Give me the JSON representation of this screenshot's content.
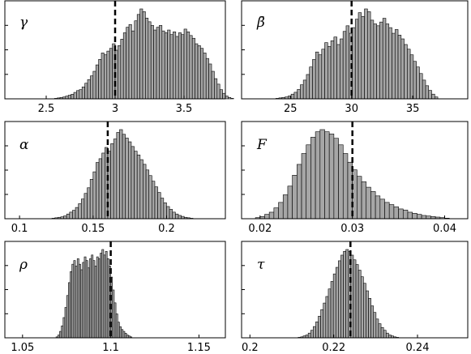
{
  "chart_data": [
    {
      "type": "bar",
      "label": "γ",
      "xlim": [
        2.2,
        3.8
      ],
      "xticks": [
        2.5,
        3,
        3.5
      ],
      "xtick_labels": [
        "2.5",
        "3",
        "3.5"
      ],
      "reference_line": 3,
      "bin_start": 2.56,
      "bin_width": 0.02,
      "counts": [
        0.005,
        0.01,
        0.015,
        0.02,
        0.03,
        0.04,
        0.05,
        0.07,
        0.09,
        0.1,
        0.13,
        0.17,
        0.21,
        0.25,
        0.3,
        0.37,
        0.43,
        0.5,
        0.48,
        0.52,
        0.55,
        0.6,
        0.53,
        0.58,
        0.65,
        0.72,
        0.78,
        0.81,
        0.74,
        0.85,
        0.92,
        0.98,
        0.95,
        0.88,
        0.84,
        0.8,
        0.75,
        0.78,
        0.8,
        0.74,
        0.72,
        0.75,
        0.7,
        0.73,
        0.68,
        0.72,
        0.7,
        0.76,
        0.73,
        0.69,
        0.66,
        0.6,
        0.58,
        0.55,
        0.5,
        0.44,
        0.38,
        0.3,
        0.22,
        0.16,
        0.1,
        0.06,
        0.03,
        0.015,
        0.005
      ]
    },
    {
      "type": "bar",
      "label": "β̄",
      "xlim": [
        21,
        39.5
      ],
      "xticks": [
        25,
        30,
        35
      ],
      "xtick_labels": [
        "25",
        "30",
        "35"
      ],
      "reference_line": 30,
      "bin_start": 23.8,
      "bin_width": 0.25,
      "counts": [
        0.005,
        0.01,
        0.015,
        0.02,
        0.03,
        0.05,
        0.07,
        0.1,
        0.15,
        0.2,
        0.26,
        0.34,
        0.42,
        0.5,
        0.47,
        0.53,
        0.6,
        0.56,
        0.62,
        0.66,
        0.58,
        0.64,
        0.72,
        0.78,
        0.7,
        0.76,
        0.85,
        0.92,
        0.88,
        0.96,
        0.93,
        0.84,
        0.8,
        0.78,
        0.82,
        0.86,
        0.8,
        0.76,
        0.7,
        0.74,
        0.68,
        0.64,
        0.58,
        0.53,
        0.47,
        0.4,
        0.34,
        0.27,
        0.2,
        0.14,
        0.09,
        0.05,
        0.02
      ]
    },
    {
      "type": "bar",
      "label": "α",
      "xlim": [
        0.09,
        0.24
      ],
      "xticks": [
        0.1,
        0.15,
        0.2
      ],
      "xtick_labels": [
        "0.1",
        "0.15",
        "0.2"
      ],
      "reference_line": 0.16,
      "bin_start": 0.122,
      "bin_width": 0.002,
      "counts": [
        0.005,
        0.01,
        0.015,
        0.02,
        0.03,
        0.05,
        0.07,
        0.09,
        0.12,
        0.16,
        0.21,
        0.27,
        0.33,
        0.42,
        0.5,
        0.6,
        0.64,
        0.7,
        0.76,
        0.72,
        0.8,
        0.85,
        0.92,
        0.95,
        0.9,
        0.86,
        0.82,
        0.77,
        0.72,
        0.68,
        0.63,
        0.58,
        0.52,
        0.46,
        0.4,
        0.34,
        0.28,
        0.22,
        0.17,
        0.13,
        0.1,
        0.07,
        0.05,
        0.035,
        0.025,
        0.015,
        0.01,
        0.005
      ]
    },
    {
      "type": "bar",
      "label": "F",
      "xlim": [
        0.018,
        0.0425
      ],
      "xticks": [
        0.02,
        0.03,
        0.04
      ],
      "xtick_labels": [
        "0.02",
        "0.03",
        "0.04"
      ],
      "reference_line": 0.03,
      "bin_start": 0.0195,
      "bin_width": 0.0005,
      "counts": [
        0.01,
        0.02,
        0.04,
        0.06,
        0.1,
        0.15,
        0.22,
        0.3,
        0.4,
        0.5,
        0.6,
        0.68,
        0.75,
        0.8,
        0.82,
        0.8,
        0.78,
        0.74,
        0.68,
        0.6,
        0.52,
        0.45,
        0.39,
        0.34,
        0.29,
        0.25,
        0.21,
        0.18,
        0.15,
        0.13,
        0.11,
        0.09,
        0.08,
        0.06,
        0.05,
        0.04,
        0.03,
        0.025,
        0.02,
        0.015,
        0.01,
        0.005
      ]
    },
    {
      "type": "bar",
      "label": "ρ",
      "xlim": [
        1.04,
        1.165
      ],
      "xticks": [
        1.05,
        1.1,
        1.15
      ],
      "xtick_labels": [
        "1.05",
        "1.1",
        "1.15"
      ],
      "reference_line": 1.1,
      "bin_start": 1.069,
      "bin_width": 0.001,
      "counts": [
        0.01,
        0.03,
        0.07,
        0.13,
        0.22,
        0.33,
        0.46,
        0.6,
        0.72,
        0.8,
        0.84,
        0.78,
        0.86,
        0.8,
        0.74,
        0.82,
        0.88,
        0.84,
        0.76,
        0.86,
        0.9,
        0.84,
        0.78,
        0.88,
        0.86,
        0.92,
        0.96,
        0.9,
        0.94,
        0.86,
        0.78,
        0.66,
        0.52,
        0.38,
        0.26,
        0.17,
        0.12,
        0.09,
        0.07,
        0.05,
        0.03,
        0.02,
        0.01
      ]
    },
    {
      "type": "bar",
      "label": "τ",
      "xlim": [
        0.198,
        0.252
      ],
      "xticks": [
        0.2,
        0.22,
        0.24
      ],
      "xtick_labels": [
        "0.2",
        "0.22",
        "0.24"
      ],
      "reference_line": 0.224,
      "bin_start": 0.2115,
      "bin_width": 0.0006,
      "counts": [
        0.005,
        0.01,
        0.02,
        0.03,
        0.05,
        0.08,
        0.12,
        0.17,
        0.23,
        0.3,
        0.37,
        0.44,
        0.52,
        0.6,
        0.68,
        0.75,
        0.82,
        0.88,
        0.92,
        0.94,
        0.92,
        0.88,
        0.83,
        0.78,
        0.72,
        0.65,
        0.58,
        0.5,
        0.42,
        0.34,
        0.27,
        0.2,
        0.15,
        0.11,
        0.08,
        0.05,
        0.03,
        0.02,
        0.01,
        0.005
      ]
    }
  ]
}
